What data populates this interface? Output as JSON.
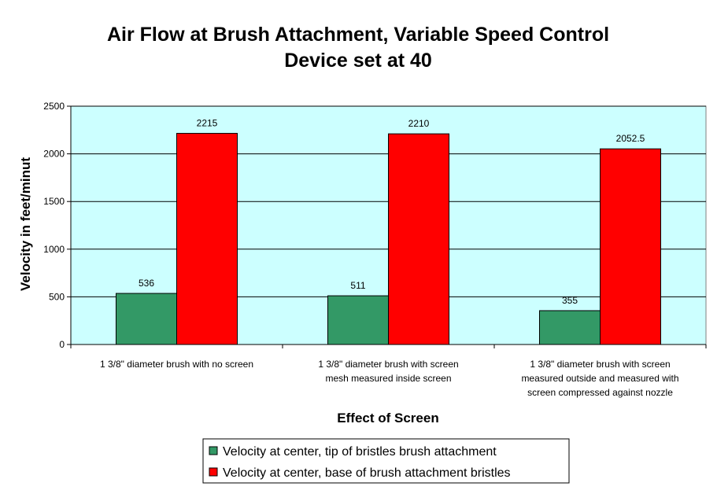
{
  "chart_data": {
    "type": "bar",
    "title_lines": [
      "Air Flow at Brush Attachment, Variable Speed Control",
      "Device set at 40"
    ],
    "xlabel": "Effect of Screen",
    "ylabel": "Velocity in feet/minut",
    "ylim": [
      0,
      2500
    ],
    "ytick_step": 500,
    "yticks": [
      "0",
      "500",
      "1000",
      "1500",
      "2000",
      "2500"
    ],
    "grid": true,
    "legend_position": "bottom",
    "categories": [
      [
        "1 3/8\" diameter brush with no screen"
      ],
      [
        "1 3/8\" diameter brush with screen",
        "mesh measured inside screen"
      ],
      [
        "1 3/8\" diameter brush with screen",
        "measured outside and measured with",
        "screen compressed against nozzle"
      ]
    ],
    "series": [
      {
        "name": "Velocity at center, tip of bristles brush attachment",
        "color": "#339966",
        "values": [
          536,
          511,
          355
        ],
        "labels": [
          "536",
          "511",
          "355"
        ]
      },
      {
        "name": "Velocity at center, base of brush attachment bristles",
        "color": "#ff0000",
        "values": [
          2215,
          2210,
          2052.5
        ],
        "labels": [
          "2215",
          "2210",
          "2052.5"
        ]
      }
    ],
    "plot_background": "#ccffff"
  }
}
